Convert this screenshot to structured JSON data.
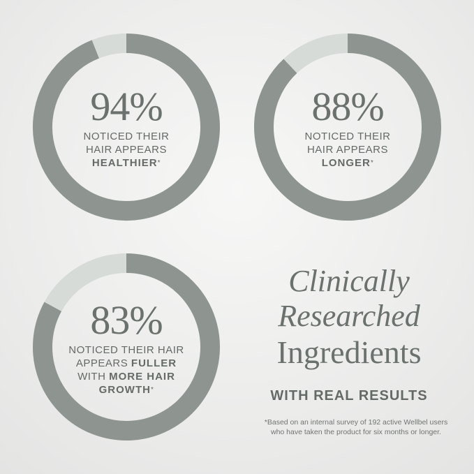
{
  "colors": {
    "filled": "#8e9590",
    "remaining": "#d6dbd7",
    "text": "#646a66"
  },
  "chart_data": [
    {
      "type": "donut",
      "value": 94,
      "max": 100,
      "label": "94%",
      "caption_lines": [
        "NOTICED THEIR",
        "HAIR APPEARS"
      ],
      "caption_bold": "HEALTHIER",
      "asterisk": "*"
    },
    {
      "type": "donut",
      "value": 88,
      "max": 100,
      "label": "88%",
      "caption_lines": [
        "NOTICED THEIR",
        "HAIR APPEARS"
      ],
      "caption_bold": "LONGER",
      "asterisk": "*"
    },
    {
      "type": "donut",
      "value": 83,
      "max": 100,
      "label": "83%",
      "caption_lines": [
        "NOTICED THEIR HAIR",
        "APPEARS "
      ],
      "caption_bold_inline": "FULLER",
      "caption_line3_prefix": "WITH ",
      "caption_bold3": "MORE HAIR",
      "caption_bold4": "GROWTH",
      "asterisk": "*"
    }
  ],
  "headline": {
    "line1": "Clinically",
    "line2": "Researched",
    "line3": "Ingredients",
    "sub": "WITH REAL RESULTS"
  },
  "footnote": {
    "line1": "*Based on an internal survey of 192 active Wellbel users",
    "line2": "who have taken the product for six months or longer."
  }
}
